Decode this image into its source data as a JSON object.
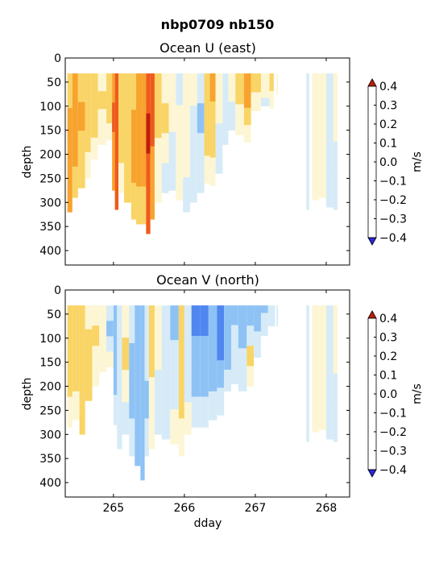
{
  "figure": {
    "suptitle": "nbp0709 nb150"
  },
  "colorbar": {
    "unit_label": "m/s",
    "levels": [
      -0.4,
      -0.3,
      -0.2,
      -0.1,
      0.0,
      0.1,
      0.2,
      0.3,
      0.4
    ],
    "tick_labels": [
      "−0.4",
      "−0.3",
      "−0.2",
      "−0.1",
      "0.0",
      "0.1",
      "0.2",
      "0.3",
      "0.4"
    ],
    "colors": [
      "#3b4cf0",
      "#4f86f0",
      "#8ec2f5",
      "#d6ebf7",
      "#fdf6d4",
      "#f9d466",
      "#f7a32e",
      "#ef5a1c"
    ],
    "under_color": "#2a2ad8",
    "over_color": "#c01d08"
  },
  "chart_data": [
    {
      "type": "heatmap",
      "title": "Ocean U (east)",
      "xlabel": "",
      "ylabel": "depth",
      "xlim": [
        264.32,
        268.33
      ],
      "ylim": [
        430,
        0
      ],
      "x_ticks": [
        265,
        266,
        267,
        268
      ],
      "y_ticks": [
        0,
        50,
        100,
        150,
        200,
        250,
        300,
        350,
        400
      ],
      "y_tick_labels": [
        "0",
        "50",
        "100",
        "150",
        "200",
        "250",
        "300",
        "350",
        "400"
      ],
      "x_tick_labels": [
        "",
        "",
        "",
        ""
      ],
      "top_depth": 32,
      "profiles": [
        {
          "x0": 264.35,
          "x1": 264.42,
          "bottom": 320,
          "v": [
            0.15,
            0.2,
            0.25,
            0.2
          ]
        },
        {
          "x0": 264.42,
          "x1": 264.5,
          "bottom": 290,
          "v": [
            0.2,
            0.25,
            0.2,
            0.15
          ]
        },
        {
          "x0": 264.5,
          "x1": 264.6,
          "bottom": 270,
          "v": [
            0.15,
            0.2,
            0.15,
            0.1
          ]
        },
        {
          "x0": 264.6,
          "x1": 264.68,
          "bottom": 250,
          "v": [
            0.15,
            0.15,
            0.1,
            0.05
          ]
        },
        {
          "x0": 264.68,
          "x1": 264.78,
          "bottom": 210,
          "v": [
            0.12,
            0.15,
            0.1,
            0.05
          ]
        },
        {
          "x0": 264.78,
          "x1": 264.9,
          "bottom": 180,
          "v": [
            0.08,
            0.1,
            0.05,
            0.02
          ]
        },
        {
          "x0": 264.9,
          "x1": 264.98,
          "bottom": 170,
          "v": [
            0.1,
            0.15,
            0.1,
            0.05
          ]
        },
        {
          "x0": 264.98,
          "x1": 265.02,
          "bottom": 275,
          "v": [
            0.25,
            0.3,
            0.25,
            0.2
          ]
        },
        {
          "x0": 265.02,
          "x1": 265.07,
          "bottom": 315,
          "v": [
            0.35,
            0.38,
            0.35,
            0.3
          ]
        },
        {
          "x0": 265.07,
          "x1": 265.15,
          "bottom": 280,
          "v": [
            0.1,
            0.15,
            0.1,
            0.05
          ]
        },
        {
          "x0": 265.15,
          "x1": 265.25,
          "bottom": 300,
          "v": [
            0.12,
            0.15,
            0.15,
            0.1
          ]
        },
        {
          "x0": 265.25,
          "x1": 265.32,
          "bottom": 335,
          "v": [
            0.15,
            0.2,
            0.2,
            0.15
          ]
        },
        {
          "x0": 265.32,
          "x1": 265.4,
          "bottom": 345,
          "v": [
            0.2,
            0.25,
            0.2,
            0.15
          ]
        },
        {
          "x0": 265.4,
          "x1": 265.46,
          "bottom": 345,
          "v": [
            0.2,
            0.25,
            0.2,
            0.15
          ]
        },
        {
          "x0": 265.46,
          "x1": 265.52,
          "bottom": 365,
          "v": [
            0.38,
            0.42,
            0.38,
            0.35
          ]
        },
        {
          "x0": 265.52,
          "x1": 265.58,
          "bottom": 335,
          "v": [
            0.3,
            0.3,
            0.25,
            0.2
          ]
        },
        {
          "x0": 265.58,
          "x1": 265.68,
          "bottom": 300,
          "v": [
            0.15,
            0.1,
            0.08,
            0.05
          ]
        },
        {
          "x0": 265.68,
          "x1": 265.78,
          "bottom": 280,
          "v": [
            0.05,
            0.1,
            0.05,
            -0.05
          ]
        },
        {
          "x0": 265.78,
          "x1": 265.88,
          "bottom": 275,
          "v": [
            0.05,
            0.02,
            -0.05,
            -0.05
          ]
        },
        {
          "x0": 265.88,
          "x1": 265.98,
          "bottom": 295,
          "v": [
            -0.05,
            0.05,
            0.05,
            0.02
          ]
        },
        {
          "x0": 265.98,
          "x1": 266.08,
          "bottom": 320,
          "v": [
            0.05,
            0.08,
            0.05,
            -0.05
          ]
        },
        {
          "x0": 266.08,
          "x1": 266.18,
          "bottom": 300,
          "v": [
            0.02,
            -0.05,
            -0.08,
            -0.05
          ]
        },
        {
          "x0": 266.18,
          "x1": 266.28,
          "bottom": 280,
          "v": [
            -0.05,
            -0.12,
            -0.08,
            -0.05
          ]
        },
        {
          "x0": 266.28,
          "x1": 266.36,
          "bottom": 260,
          "v": [
            0.1,
            0.15,
            0.1,
            0.05
          ]
        },
        {
          "x0": 266.36,
          "x1": 266.44,
          "bottom": 265,
          "v": [
            0.2,
            0.15,
            0.1,
            0.05
          ]
        },
        {
          "x0": 266.44,
          "x1": 266.54,
          "bottom": 240,
          "v": [
            0.05,
            0.02,
            -0.05,
            -0.05
          ]
        },
        {
          "x0": 266.54,
          "x1": 266.62,
          "bottom": 180,
          "v": [
            -0.05,
            -0.08,
            -0.05,
            -0.02
          ]
        },
        {
          "x0": 266.62,
          "x1": 266.72,
          "bottom": 150,
          "v": [
            0.05,
            0.02,
            -0.02,
            -0.05
          ]
        },
        {
          "x0": 266.72,
          "x1": 266.84,
          "bottom": 160,
          "v": [
            0.15,
            0.1,
            0.05,
            0.02
          ]
        },
        {
          "x0": 266.84,
          "x1": 266.94,
          "bottom": 175,
          "v": [
            0.25,
            0.2,
            0.12,
            0.05
          ]
        },
        {
          "x0": 266.94,
          "x1": 267.08,
          "bottom": 110,
          "v": [
            0.15,
            0.1,
            0.05,
            0.02
          ]
        },
        {
          "x0": 267.08,
          "x1": 267.2,
          "bottom": 100,
          "v": [
            0.05,
            0.05,
            0.02,
            -0.02
          ]
        },
        {
          "x0": 267.2,
          "x1": 267.26,
          "bottom": 105,
          "v": [
            0.15,
            0.1,
            0.05,
            0.02
          ]
        },
        {
          "x0": 267.3,
          "x1": 267.32,
          "bottom": 75,
          "v": [
            0.05,
            0.02,
            0.02,
            0.02
          ]
        },
        {
          "x0": 267.72,
          "x1": 267.76,
          "bottom": 315,
          "v": [
            -0.05,
            -0.05,
            -0.05,
            -0.05
          ]
        },
        {
          "x0": 267.8,
          "x1": 267.9,
          "bottom": 295,
          "v": [
            0.05,
            0.05,
            0.05,
            0.05
          ]
        },
        {
          "x0": 267.9,
          "x1": 268.0,
          "bottom": 290,
          "v": [
            0.02,
            0.05,
            0.02,
            0.02
          ]
        },
        {
          "x0": 268.0,
          "x1": 268.1,
          "bottom": 310,
          "v": [
            -0.05,
            -0.05,
            -0.02,
            -0.05
          ]
        },
        {
          "x0": 268.1,
          "x1": 268.16,
          "bottom": 315,
          "v": [
            0.05,
            0.02,
            -0.05,
            -0.05
          ]
        }
      ]
    },
    {
      "type": "heatmap",
      "title": "Ocean V (north)",
      "xlabel": "dday",
      "ylabel": "depth",
      "xlim": [
        264.32,
        268.33
      ],
      "ylim": [
        430,
        0
      ],
      "x_ticks": [
        265,
        266,
        267,
        268
      ],
      "x_tick_labels": [
        "265",
        "266",
        "267",
        "268"
      ],
      "y_ticks": [
        0,
        50,
        100,
        150,
        200,
        250,
        300,
        350,
        400
      ],
      "y_tick_labels": [
        "0",
        "50",
        "100",
        "150",
        "200",
        "250",
        "300",
        "350",
        "400"
      ],
      "top_depth": 32,
      "profiles": [
        {
          "x0": 264.35,
          "x1": 264.42,
          "bottom": 285,
          "v": [
            0.1,
            0.15,
            0.1,
            0.05
          ]
        },
        {
          "x0": 264.42,
          "x1": 264.52,
          "bottom": 270,
          "v": [
            0.15,
            0.12,
            0.1,
            0.05
          ]
        },
        {
          "x0": 264.52,
          "x1": 264.6,
          "bottom": 300,
          "v": [
            0.1,
            0.15,
            0.12,
            0.1
          ]
        },
        {
          "x0": 264.6,
          "x1": 264.7,
          "bottom": 230,
          "v": [
            0.05,
            0.1,
            0.15,
            0.1
          ]
        },
        {
          "x0": 264.7,
          "x1": 264.8,
          "bottom": 200,
          "v": [
            0.05,
            0.1,
            0.08,
            0.05
          ]
        },
        {
          "x0": 264.8,
          "x1": 264.9,
          "bottom": 170,
          "v": [
            0.05,
            0.05,
            0.02,
            0.02
          ]
        },
        {
          "x0": 264.9,
          "x1": 265.0,
          "bottom": 160,
          "v": [
            -0.05,
            -0.12,
            -0.05,
            0.05
          ]
        },
        {
          "x0": 265.0,
          "x1": 265.05,
          "bottom": 280,
          "v": [
            -0.12,
            -0.2,
            -0.12,
            -0.05
          ]
        },
        {
          "x0": 265.05,
          "x1": 265.12,
          "bottom": 330,
          "v": [
            -0.05,
            -0.08,
            -0.05,
            -0.02
          ]
        },
        {
          "x0": 265.12,
          "x1": 265.22,
          "bottom": 300,
          "v": [
            0.05,
            0.1,
            0.05,
            -0.05
          ]
        },
        {
          "x0": 265.22,
          "x1": 265.3,
          "bottom": 345,
          "v": [
            -0.1,
            -0.15,
            -0.12,
            -0.08
          ]
        },
        {
          "x0": 265.3,
          "x1": 265.38,
          "bottom": 365,
          "v": [
            -0.12,
            -0.15,
            -0.15,
            -0.12
          ]
        },
        {
          "x0": 265.38,
          "x1": 265.44,
          "bottom": 395,
          "v": [
            -0.15,
            -0.12,
            -0.12,
            -0.12
          ]
        },
        {
          "x0": 265.44,
          "x1": 265.5,
          "bottom": 345,
          "v": [
            -0.05,
            -0.08,
            -0.12,
            -0.05
          ]
        },
        {
          "x0": 265.5,
          "x1": 265.58,
          "bottom": 330,
          "v": [
            0.15,
            0.12,
            0.05,
            0.02
          ]
        },
        {
          "x0": 265.58,
          "x1": 265.68,
          "bottom": 300,
          "v": [
            0.05,
            0.02,
            -0.05,
            -0.05
          ]
        },
        {
          "x0": 265.68,
          "x1": 265.8,
          "bottom": 310,
          "v": [
            -0.05,
            -0.08,
            -0.05,
            -0.02
          ]
        },
        {
          "x0": 265.8,
          "x1": 265.92,
          "bottom": 320,
          "v": [
            -0.12,
            -0.1,
            -0.05,
            0.05
          ]
        },
        {
          "x0": 265.92,
          "x1": 266.0,
          "bottom": 345,
          "v": [
            0.15,
            0.12,
            0.1,
            0.05
          ]
        },
        {
          "x0": 266.0,
          "x1": 266.1,
          "bottom": 300,
          "v": [
            -0.05,
            -0.1,
            -0.05,
            0.02
          ]
        },
        {
          "x0": 266.1,
          "x1": 266.22,
          "bottom": 285,
          "v": [
            -0.25,
            -0.2,
            -0.15,
            -0.1
          ]
        },
        {
          "x0": 266.22,
          "x1": 266.34,
          "bottom": 285,
          "v": [
            -0.22,
            -0.2,
            -0.15,
            -0.1
          ]
        },
        {
          "x0": 266.34,
          "x1": 266.46,
          "bottom": 270,
          "v": [
            -0.2,
            -0.15,
            -0.12,
            -0.05
          ]
        },
        {
          "x0": 266.46,
          "x1": 266.56,
          "bottom": 260,
          "v": [
            -0.25,
            -0.22,
            -0.15,
            -0.1
          ]
        },
        {
          "x0": 266.56,
          "x1": 266.66,
          "bottom": 210,
          "v": [
            -0.18,
            -0.15,
            -0.12,
            -0.05
          ]
        },
        {
          "x0": 266.66,
          "x1": 266.76,
          "bottom": 195,
          "v": [
            -0.15,
            -0.1,
            -0.05,
            -0.02
          ]
        },
        {
          "x0": 266.76,
          "x1": 266.88,
          "bottom": 210,
          "v": [
            -0.2,
            -0.15,
            -0.1,
            -0.05
          ]
        },
        {
          "x0": 266.88,
          "x1": 266.98,
          "bottom": 200,
          "v": [
            -0.12,
            -0.05,
            0.12,
            0.05
          ]
        },
        {
          "x0": 266.98,
          "x1": 267.08,
          "bottom": 140,
          "v": [
            -0.15,
            -0.12,
            -0.1,
            -0.05
          ]
        },
        {
          "x0": 267.08,
          "x1": 267.18,
          "bottom": 95,
          "v": [
            -0.12,
            -0.08,
            -0.05,
            -0.02
          ]
        },
        {
          "x0": 267.18,
          "x1": 267.28,
          "bottom": 75,
          "v": [
            -0.05,
            -0.05,
            -0.05,
            -0.05
          ]
        },
        {
          "x0": 267.3,
          "x1": 267.32,
          "bottom": 75,
          "v": [
            -0.05,
            -0.05,
            -0.05,
            -0.05
          ]
        },
        {
          "x0": 267.72,
          "x1": 267.76,
          "bottom": 315,
          "v": [
            -0.05,
            -0.05,
            -0.05,
            -0.05
          ]
        },
        {
          "x0": 267.8,
          "x1": 267.9,
          "bottom": 295,
          "v": [
            0.05,
            0.05,
            0.05,
            0.05
          ]
        },
        {
          "x0": 267.9,
          "x1": 268.0,
          "bottom": 290,
          "v": [
            0.02,
            0.05,
            0.02,
            0.02
          ]
        },
        {
          "x0": 268.0,
          "x1": 268.1,
          "bottom": 310,
          "v": [
            -0.05,
            -0.05,
            -0.02,
            -0.05
          ]
        },
        {
          "x0": 268.1,
          "x1": 268.16,
          "bottom": 315,
          "v": [
            0.05,
            0.02,
            -0.05,
            -0.05
          ]
        }
      ]
    }
  ]
}
